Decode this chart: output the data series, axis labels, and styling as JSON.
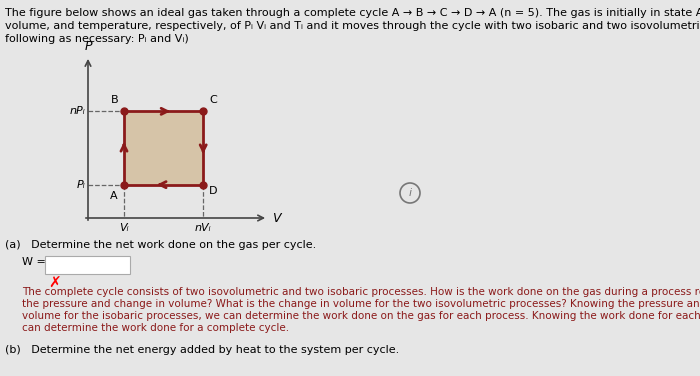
{
  "background_color": "#e6e6e6",
  "title_lines": [
    "The figure below shows an ideal gas taken through a complete cycle A → B → C → D → A (n = 5). The gas is initially in state A with pressure,",
    "volume, and temperature, respectively, of Pᵢ Vᵢ and Tᵢ and it moves through the cycle with two isobaric and two isovolumetric processes. (Use the",
    "following as necessary: Pᵢ and Vᵢ)"
  ],
  "title_fontsize": 8.0,
  "diagram": {
    "Vi": 1.0,
    "nVi": 3.2,
    "Pi": 1.0,
    "nPi": 3.2,
    "rect_facecolor": "#d6c4a8",
    "rect_edgecolor": "#8b1a1a",
    "arrow_color": "#8b1a1a",
    "axis_color": "#444444",
    "label_A": "A",
    "label_B": "B",
    "label_C": "C",
    "label_D": "D",
    "label_xaxis": "V",
    "label_yaxis": "P",
    "label_Vi": "Vᵢ",
    "label_nVi": "nVᵢ",
    "label_Pi": "Pᵢ",
    "label_nPi": "nPᵢ"
  },
  "part_a_label": "(a)   Determine the net work done on the gas per cycle.",
  "w_label": "W =",
  "x_mark": "✗",
  "hint_lines": [
    "The complete cycle consists of two isovolumetric and two isobaric processes. How is the work done on the gas during a process related to",
    "the pressure and change in volume? What is the change in volume for the two isovolumetric processes? Knowing the pressure and change in",
    "volume for the isobaric processes, we can determine the work done on the gas for each process. Knowing the work done for each process, we",
    "can determine the work done for a complete cycle."
  ],
  "hint_color": "#8b1a1a",
  "hint_fontsize": 7.5,
  "part_b_label": "(b)   Determine the net energy added by heat to the system per cycle.",
  "text_fontsize": 8.0,
  "label_fontsize": 8.5
}
